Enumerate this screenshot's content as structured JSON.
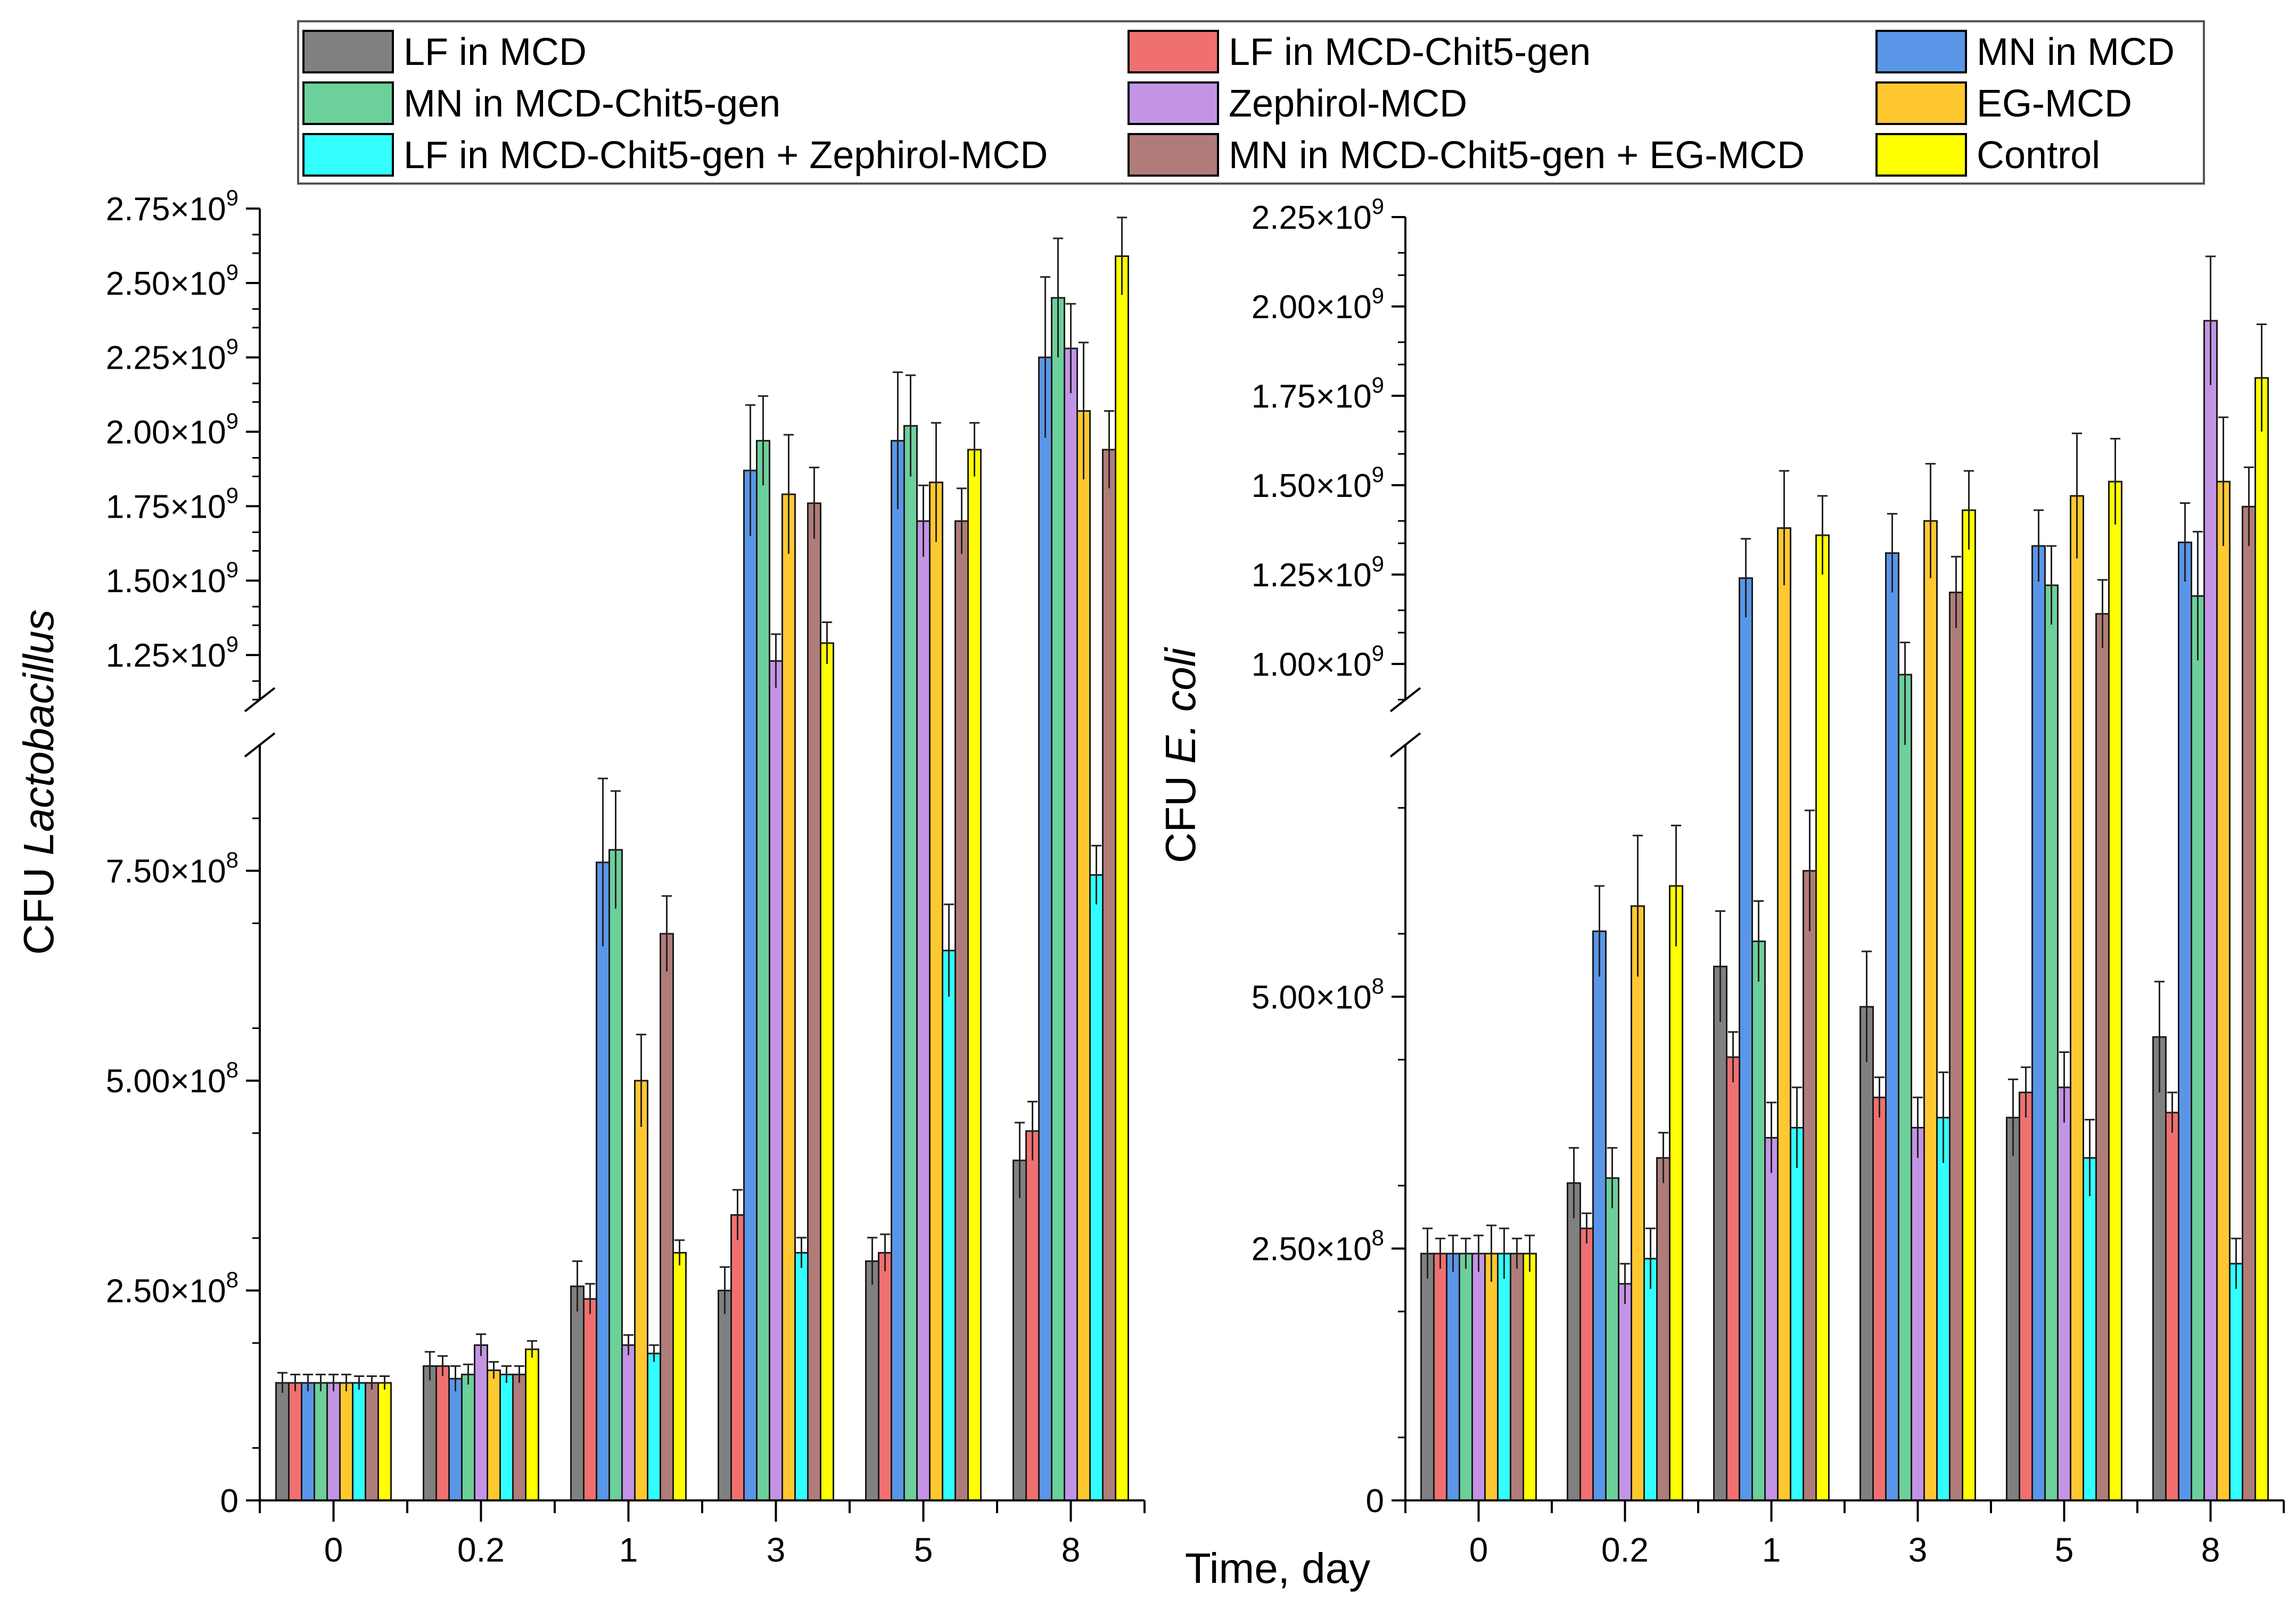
{
  "legend": {
    "entries": [
      {
        "label": "LF in MCD",
        "color": "#808080"
      },
      {
        "label": "LF in MCD-Chit5-gen",
        "color": "#F07070"
      },
      {
        "label": "MN in MCD",
        "color": "#5A96E8"
      },
      {
        "label": "MN in MCD-Chit5-gen",
        "color": "#6CD09A"
      },
      {
        "label": "Zephirol-MCD",
        "color": "#C394E4"
      },
      {
        "label": "EG-MCD",
        "color": "#FFC830"
      },
      {
        "label": "LF in MCD-Chit5-gen + Zephirol-MCD",
        "color": "#33FFFF"
      },
      {
        "label": "MN in MCD-Chit5-gen + EG-MCD",
        "color": "#B07C7A"
      },
      {
        "label": "Control",
        "color": "#FFFF00"
      }
    ]
  },
  "shared_xlabel": "Time, day",
  "chart_data": [
    {
      "type": "bar",
      "title": "",
      "ylabel_prefix": "CFU ",
      "ylabel_italic": "Lactobacillus",
      "categories": [
        "0",
        "0.2",
        "1",
        "3",
        "5",
        "8"
      ],
      "y_axis_break": {
        "lower_range": [
          0,
          900000000
        ],
        "upper_range": [
          1100000000,
          2750000000
        ]
      },
      "lower_ticks": [
        {
          "value": 0,
          "base": "0",
          "exp": ""
        },
        {
          "value": 250000000,
          "base": "2.50×10",
          "exp": "8"
        },
        {
          "value": 500000000,
          "base": "5.00×10",
          "exp": "8"
        },
        {
          "value": 750000000,
          "base": "7.50×10",
          "exp": "8"
        }
      ],
      "upper_ticks": [
        {
          "value": 1250000000,
          "base": "1.25×10",
          "exp": "9"
        },
        {
          "value": 1500000000,
          "base": "1.50×10",
          "exp": "9"
        },
        {
          "value": 1750000000,
          "base": "1.75×10",
          "exp": "9"
        },
        {
          "value": 2000000000,
          "base": "2.00×10",
          "exp": "9"
        },
        {
          "value": 2250000000,
          "base": "2.25×10",
          "exp": "9"
        },
        {
          "value": 2500000000,
          "base": "2.50×10",
          "exp": "9"
        },
        {
          "value": 2750000000,
          "base": "2.75×10",
          "exp": "9"
        }
      ],
      "series": [
        {
          "name": "LF in MCD",
          "values": [
            140000000,
            160000000,
            255000000,
            250000000,
            285000000,
            405000000
          ],
          "errors": [
            12000000,
            17000000,
            30000000,
            28000000,
            28000000,
            45000000
          ]
        },
        {
          "name": "LF in MCD-Chit5-gen",
          "values": [
            140000000,
            160000000,
            240000000,
            340000000,
            295000000,
            440000000
          ],
          "errors": [
            10000000,
            12000000,
            18000000,
            30000000,
            22000000,
            35000000
          ]
        },
        {
          "name": "MN in MCD",
          "values": [
            140000000,
            145000000,
            760000000,
            1870000000,
            1970000000,
            2250000000
          ],
          "errors": [
            10000000,
            15000000,
            100000000,
            220000000,
            230000000,
            270000000
          ]
        },
        {
          "name": "MN in MCD-Chit5-gen",
          "values": [
            140000000,
            150000000,
            775000000,
            1970000000,
            2020000000,
            2450000000
          ],
          "errors": [
            10000000,
            12000000,
            70000000,
            150000000,
            170000000,
            200000000
          ]
        },
        {
          "name": "Zephirol-MCD",
          "values": [
            140000000,
            185000000,
            185000000,
            1230000000,
            1700000000,
            2280000000
          ],
          "errors": [
            10000000,
            13000000,
            12000000,
            90000000,
            120000000,
            150000000
          ]
        },
        {
          "name": "EG-MCD",
          "values": [
            140000000,
            155000000,
            500000000,
            1790000000,
            1830000000,
            2070000000
          ],
          "errors": [
            10000000,
            10000000,
            55000000,
            200000000,
            200000000,
            230000000
          ]
        },
        {
          "name": "LF in MCD-Chit5-gen + Zephirol-MCD",
          "values": [
            140000000,
            150000000,
            175000000,
            295000000,
            655000000,
            745000000
          ],
          "errors": [
            8000000,
            10000000,
            10000000,
            18000000,
            55000000,
            35000000
          ]
        },
        {
          "name": "MN in MCD-Chit5-gen + EG-MCD",
          "values": [
            140000000,
            150000000,
            675000000,
            1760000000,
            1700000000,
            1940000000
          ],
          "errors": [
            8000000,
            10000000,
            45000000,
            120000000,
            110000000,
            130000000
          ]
        },
        {
          "name": "Control",
          "values": [
            140000000,
            180000000,
            295000000,
            1290000000,
            1940000000,
            2590000000
          ],
          "errors": [
            8000000,
            10000000,
            15000000,
            70000000,
            90000000,
            130000000
          ]
        }
      ]
    },
    {
      "type": "bar",
      "title": "",
      "ylabel_prefix": "CFU ",
      "ylabel_italic": "E. coli",
      "categories": [
        "0",
        "0.2",
        "1",
        "3",
        "5",
        "8"
      ],
      "y_axis_break": {
        "lower_range": [
          0,
          750000000
        ],
        "upper_range": [
          900000000,
          2250000000
        ]
      },
      "lower_ticks": [
        {
          "value": 0,
          "base": "0",
          "exp": ""
        },
        {
          "value": 250000000,
          "base": "2.50×10",
          "exp": "8"
        },
        {
          "value": 500000000,
          "base": "5.00×10",
          "exp": "8"
        }
      ],
      "upper_ticks": [
        {
          "value": 1000000000,
          "base": "1.00×10",
          "exp": "9"
        },
        {
          "value": 1250000000,
          "base": "1.25×10",
          "exp": "9"
        },
        {
          "value": 1500000000,
          "base": "1.50×10",
          "exp": "9"
        },
        {
          "value": 1750000000,
          "base": "1.75×10",
          "exp": "9"
        },
        {
          "value": 2000000000,
          "base": "2.00×10",
          "exp": "9"
        },
        {
          "value": 2250000000,
          "base": "2.25×10",
          "exp": "9"
        }
      ],
      "series": [
        {
          "name": "LF in MCD",
          "values": [
            245000000,
            315000000,
            530000000,
            490000000,
            380000000,
            460000000
          ],
          "errors": [
            25000000,
            35000000,
            55000000,
            55000000,
            38000000,
            55000000
          ]
        },
        {
          "name": "LF in MCD-Chit5-gen",
          "values": [
            245000000,
            270000000,
            440000000,
            400000000,
            405000000,
            385000000
          ],
          "errors": [
            15000000,
            15000000,
            25000000,
            20000000,
            25000000,
            20000000
          ]
        },
        {
          "name": "MN in MCD",
          "values": [
            245000000,
            565000000,
            1240000000,
            1310000000,
            1330000000,
            1340000000
          ],
          "errors": [
            18000000,
            45000000,
            110000000,
            110000000,
            100000000,
            110000000
          ]
        },
        {
          "name": "MN in MCD-Chit5-gen",
          "values": [
            245000000,
            320000000,
            555000000,
            970000000,
            1220000000,
            1190000000
          ],
          "errors": [
            15000000,
            30000000,
            40000000,
            90000000,
            110000000,
            180000000
          ]
        },
        {
          "name": "Zephirol-MCD",
          "values": [
            245000000,
            215000000,
            360000000,
            370000000,
            410000000,
            1960000000
          ],
          "errors": [
            18000000,
            20000000,
            35000000,
            30000000,
            35000000,
            180000000
          ]
        },
        {
          "name": "EG-MCD",
          "values": [
            245000000,
            590000000,
            1380000000,
            1400000000,
            1470000000,
            1510000000
          ],
          "errors": [
            28000000,
            70000000,
            160000000,
            160000000,
            175000000,
            180000000
          ]
        },
        {
          "name": "LF in MCD-Chit5-gen + Zephirol-MCD",
          "values": [
            245000000,
            240000000,
            370000000,
            380000000,
            340000000,
            235000000
          ],
          "errors": [
            25000000,
            30000000,
            40000000,
            45000000,
            38000000,
            25000000
          ]
        },
        {
          "name": "MN in MCD-Chit5-gen + EG-MCD",
          "values": [
            245000000,
            340000000,
            625000000,
            1200000000,
            1140000000,
            1440000000
          ],
          "errors": [
            15000000,
            25000000,
            60000000,
            100000000,
            95000000,
            110000000
          ]
        },
        {
          "name": "Control",
          "values": [
            245000000,
            610000000,
            1360000000,
            1430000000,
            1510000000,
            1800000000
          ],
          "errors": [
            18000000,
            60000000,
            110000000,
            110000000,
            120000000,
            150000000
          ]
        }
      ]
    }
  ]
}
